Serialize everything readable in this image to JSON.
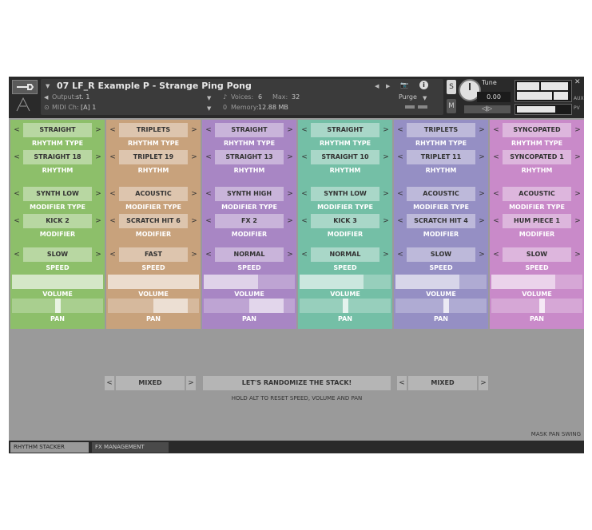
{
  "header": {
    "instrument_title": "07 LF_R Example P - Strange Ping Pong",
    "output_label": "Output:",
    "output_value": "st. 1",
    "voices_label": "Voices:",
    "voices_value": "6",
    "max_label": "Max:",
    "max_value": "32",
    "purge_label": "Purge",
    "midi_label": "MIDI Ch:",
    "midi_value": "[A]  1",
    "memory_label": "Memory:",
    "memory_value": "12.88 MB",
    "memory_prefix": "0",
    "solo_label": "S",
    "mute_label": "M",
    "tune_label": "Tune",
    "tune_value": "0.00",
    "pan_label": "◁|▷",
    "aux_label": "AUX",
    "pv_label": "PV"
  },
  "labels": {
    "rhythm_type": "RHYTHM TYPE",
    "rhythm": "RHYTHM",
    "modifier_type": "MODIFIER TYPE",
    "modifier": "MODIFIER",
    "speed": "SPEED",
    "volume": "VOLUME",
    "pan": "PAN",
    "arrow_left": "<",
    "arrow_right": ">"
  },
  "columns": [
    {
      "color": "#8dbf6a",
      "rhythm_type": "STRAIGHT",
      "rhythm": "STRAIGHT 18",
      "modifier_type": "SYNTH LOW",
      "modifier": "KICK 2",
      "speed": "SLOW",
      "volume": 1.0,
      "pan": 0.5
    },
    {
      "color": "#c8a27c",
      "rhythm_type": "TRIPLETS",
      "rhythm": "TRIPLET 19",
      "modifier_type": "ACOUSTIC",
      "modifier": "SCRATCH HIT 6",
      "speed": "FAST",
      "volume": 1.0,
      "pan": 0.75
    },
    {
      "color": "#a886c4",
      "rhythm_type": "STRAIGHT",
      "rhythm": "STRAIGHT 13",
      "modifier_type": "SYNTH HIGH",
      "modifier": "FX 2",
      "speed": "NORMAL",
      "volume": 0.6,
      "pan": 0.75
    },
    {
      "color": "#74bfa6",
      "rhythm_type": "STRAIGHT",
      "rhythm": "STRAIGHT 10",
      "modifier_type": "SYNTH LOW",
      "modifier": "KICK 3",
      "speed": "NORMAL",
      "volume": 0.7,
      "pan": 0.5
    },
    {
      "color": "#958fc4",
      "rhythm_type": "TRIPLETS",
      "rhythm": "TRIPLET 11",
      "modifier_type": "ACOUSTIC",
      "modifier": "SCRATCH HIT 4",
      "speed": "SLOW",
      "volume": 0.7,
      "pan": 0.55
    },
    {
      "color": "#c98ac9",
      "rhythm_type": "SYNCOPATED",
      "rhythm": "SYNCOPATED 1",
      "modifier_type": "ACOUSTIC",
      "modifier": "HUM PIECE 1",
      "speed": "SLOW",
      "volume": 0.7,
      "pan": 0.55
    }
  ],
  "bottom": {
    "left_select": "MIXED",
    "randomize_label": "LET'S RANDOMIZE THE STACK!",
    "hint": "HOLD ALT TO RESET SPEED, VOLUME AND PAN",
    "right_select": "MIXED",
    "mask_label": "MASK PAN SWING"
  },
  "tabs": [
    {
      "label": "RHYTHM STACKER",
      "active": true
    },
    {
      "label": "FX MANAGEMENT",
      "active": false
    }
  ]
}
